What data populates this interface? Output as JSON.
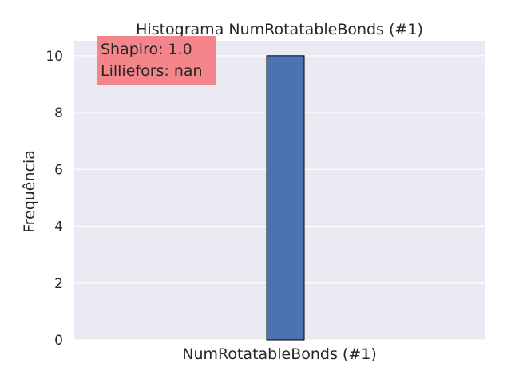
{
  "chart_data": {
    "type": "bar",
    "title": "Histograma NumRotatableBonds (#1)",
    "xlabel": "NumRotatableBonds (#1)",
    "ylabel": "Frequência",
    "ylim": [
      0,
      10.5
    ],
    "yticks": [
      "0",
      "2",
      "4",
      "6",
      "8",
      "10"
    ],
    "categories": [
      ""
    ],
    "values": [
      10
    ],
    "grid": true,
    "annotations": [
      "Shapiro: 1.0",
      "Lilliefors: nan"
    ]
  },
  "colors": {
    "plot_background": "#eaeaf2",
    "grid": "#ffffff",
    "bar_fill": "#4c72b0",
    "bar_edge": "#000000",
    "annotation_box": "#f4868b",
    "text": "#262626"
  }
}
